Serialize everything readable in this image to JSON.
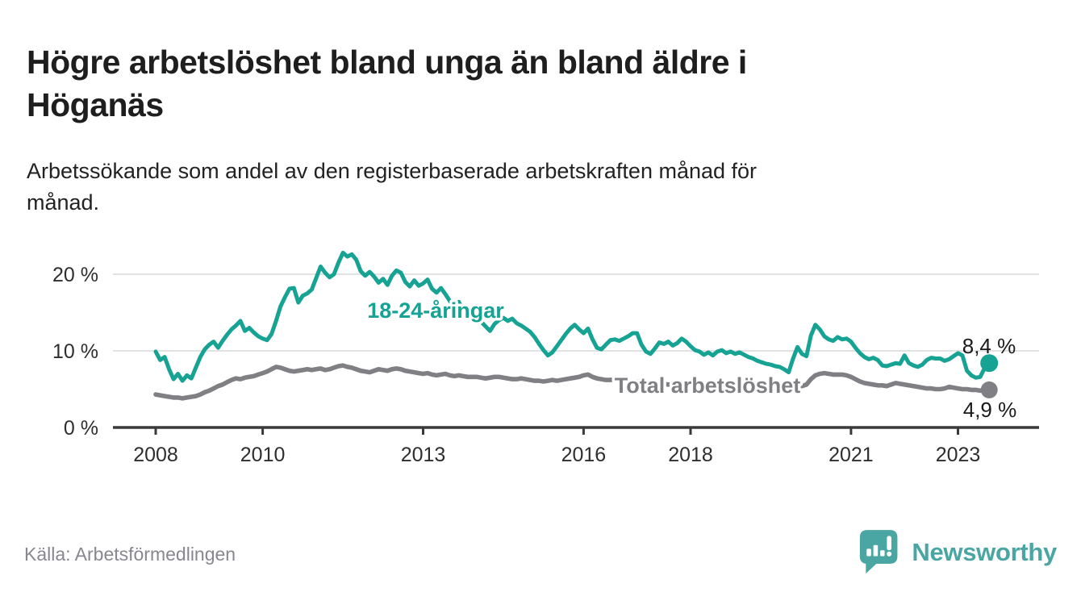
{
  "header": {
    "title_lines": [
      "Högre arbetslöshet bland unga än bland äldre i",
      "Höganäs"
    ],
    "subtitle_lines": [
      "Arbetssökande som andel av den registerbaserade arbetskraften månad för",
      "månad."
    ]
  },
  "chart_data": {
    "type": "line",
    "title": "Högre arbetslöshet bland unga än bland äldre i Höganäs",
    "subtitle": "Arbetssökande som andel av den registerbaserade arbetskraften månad för månad.",
    "x_start": "2008-01",
    "x_end": "2023-08",
    "x_unit": "month",
    "y_unit": "%",
    "ylim": [
      0,
      24
    ],
    "grid": "horizontal",
    "legend_position": "inline-annotations",
    "y_ticks": [
      {
        "value": 0,
        "label": "0 %"
      },
      {
        "value": 10,
        "label": "10 %"
      },
      {
        "value": 20,
        "label": "20 %"
      }
    ],
    "x_ticks": [
      {
        "year": 2008,
        "label": "2008"
      },
      {
        "year": 2010,
        "label": "2010"
      },
      {
        "year": 2013,
        "label": "2013"
      },
      {
        "year": 2016,
        "label": "2016"
      },
      {
        "year": 2018,
        "label": "2018"
      },
      {
        "year": 2021,
        "label": "2021"
      },
      {
        "year": 2023,
        "label": "2023"
      }
    ],
    "series": [
      {
        "name": "18-24-åringar",
        "color": "#16a394",
        "end_label": "8,4 %",
        "end_value": 8.4,
        "values": [
          9.9,
          8.8,
          9.2,
          7.6,
          6.3,
          7.0,
          6.1,
          6.8,
          6.4,
          7.8,
          9.2,
          10.2,
          10.8,
          11.2,
          10.4,
          11.3,
          12.1,
          12.8,
          13.3,
          13.9,
          12.6,
          13.0,
          12.4,
          11.9,
          11.6,
          11.4,
          12.2,
          13.9,
          15.8,
          17.0,
          18.1,
          18.2,
          16.3,
          17.2,
          17.5,
          18.0,
          19.5,
          21.0,
          20.2,
          19.6,
          20.0,
          21.5,
          22.8,
          22.3,
          22.6,
          21.9,
          20.4,
          19.8,
          20.3,
          19.7,
          18.9,
          19.4,
          18.6,
          19.8,
          20.5,
          20.2,
          19.0,
          18.4,
          19.2,
          18.5,
          18.8,
          19.3,
          18.1,
          17.6,
          18.2,
          17.4,
          16.5,
          15.8,
          16.4,
          15.2,
          14.6,
          14.9,
          14.4,
          13.8,
          13.2,
          12.6,
          13.5,
          14.0,
          14.3,
          13.9,
          14.2,
          13.6,
          13.3,
          12.9,
          12.5,
          11.8,
          10.9,
          10.1,
          9.4,
          9.8,
          10.6,
          11.4,
          12.2,
          12.9,
          13.4,
          12.8,
          12.3,
          12.9,
          11.5,
          10.4,
          10.2,
          10.8,
          11.4,
          11.5,
          11.3,
          11.6,
          11.9,
          12.3,
          12.3,
          10.8,
          9.9,
          9.6,
          10.3,
          11.1,
          10.9,
          11.2,
          10.7,
          11.0,
          11.6,
          11.2,
          10.6,
          10.1,
          9.9,
          9.5,
          9.8,
          9.4,
          9.9,
          10.1,
          9.7,
          9.9,
          9.6,
          9.8,
          9.5,
          9.2,
          9.0,
          8.7,
          8.5,
          8.3,
          8.2,
          8.0,
          7.9,
          7.6,
          7.2,
          9.0,
          10.5,
          9.6,
          9.3,
          12.0,
          13.4,
          12.8,
          11.9,
          11.5,
          11.3,
          11.8,
          11.5,
          11.6,
          11.2,
          10.4,
          9.7,
          9.2,
          8.9,
          9.1,
          8.8,
          8.1,
          8.0,
          8.2,
          8.4,
          8.3,
          9.4,
          8.4,
          8.1,
          7.9,
          8.2,
          8.8,
          9.1,
          9.0,
          9.0,
          8.7,
          8.9,
          9.3,
          9.7,
          9.4,
          7.4,
          6.8,
          6.5,
          6.6,
          7.8,
          8.4
        ]
      },
      {
        "name": "Total arbetslöshet",
        "color": "#808084",
        "end_label": "4,9 %",
        "end_value": 4.9,
        "values": [
          4.3,
          4.2,
          4.1,
          4.0,
          3.9,
          3.9,
          3.8,
          3.9,
          4.0,
          4.1,
          4.3,
          4.6,
          4.8,
          5.1,
          5.4,
          5.6,
          5.9,
          6.2,
          6.4,
          6.3,
          6.5,
          6.6,
          6.7,
          6.9,
          7.1,
          7.3,
          7.6,
          7.9,
          7.8,
          7.6,
          7.4,
          7.3,
          7.4,
          7.5,
          7.6,
          7.5,
          7.6,
          7.7,
          7.5,
          7.6,
          7.8,
          8.0,
          8.1,
          7.9,
          7.8,
          7.6,
          7.4,
          7.3,
          7.2,
          7.4,
          7.6,
          7.5,
          7.4,
          7.6,
          7.7,
          7.6,
          7.4,
          7.3,
          7.2,
          7.1,
          7.0,
          7.1,
          6.9,
          6.8,
          6.9,
          7.0,
          6.8,
          6.7,
          6.8,
          6.7,
          6.6,
          6.6,
          6.6,
          6.5,
          6.4,
          6.5,
          6.6,
          6.6,
          6.5,
          6.4,
          6.3,
          6.3,
          6.4,
          6.3,
          6.2,
          6.1,
          6.1,
          6.0,
          6.1,
          6.2,
          6.1,
          6.2,
          6.3,
          6.4,
          6.5,
          6.6,
          6.8,
          6.9,
          6.6,
          6.4,
          6.3,
          6.2,
          6.2,
          6.3,
          6.2,
          6.1,
          6.1,
          6.0,
          6.0,
          5.9,
          5.8,
          5.7,
          5.7,
          5.8,
          5.7,
          5.6,
          5.6,
          5.5,
          5.5,
          5.4,
          5.4,
          5.4,
          5.3,
          5.3,
          5.3,
          5.4,
          5.3,
          5.3,
          5.2,
          5.2,
          5.2,
          5.2,
          5.2,
          5.2,
          5.1,
          5.1,
          5.1,
          5.2,
          5.2,
          5.1,
          5.1,
          5.2,
          5.2,
          5.3,
          5.4,
          5.4,
          5.6,
          6.3,
          6.8,
          7.0,
          7.1,
          7.0,
          6.9,
          6.9,
          6.9,
          6.8,
          6.6,
          6.3,
          6.0,
          5.8,
          5.7,
          5.6,
          5.5,
          5.5,
          5.4,
          5.6,
          5.8,
          5.7,
          5.6,
          5.5,
          5.4,
          5.3,
          5.2,
          5.1,
          5.1,
          5.0,
          5.0,
          5.1,
          5.3,
          5.2,
          5.1,
          5.0,
          5.0,
          4.9,
          4.9,
          4.8,
          4.9,
          4.9
        ]
      }
    ]
  },
  "footer": {
    "source": "Källa: Arbetsförmedlingen",
    "brand": "Newsworthy"
  }
}
